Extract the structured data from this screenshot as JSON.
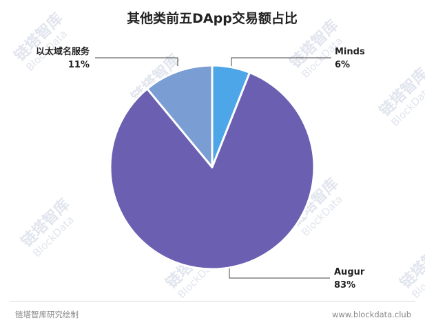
{
  "chart_data": {
    "type": "pie",
    "title": "其他类前五DApp交易额占比",
    "slices": [
      {
        "name": "Minds",
        "value": 6,
        "pct_label": "6%",
        "color": "#4da6e8"
      },
      {
        "name": "Augur",
        "value": 83,
        "pct_label": "83%",
        "color": "#6a5fb0"
      },
      {
        "name": "以太域名服务",
        "value": 11,
        "pct_label": "11%",
        "color": "#7a9ed4"
      }
    ]
  },
  "footer": {
    "source": "链塔智库研究绘制",
    "url": "www.blockdata.club"
  },
  "watermark": {
    "cn": "链塔智库",
    "en": "BlockData",
    "color": "#c9cfe0"
  }
}
